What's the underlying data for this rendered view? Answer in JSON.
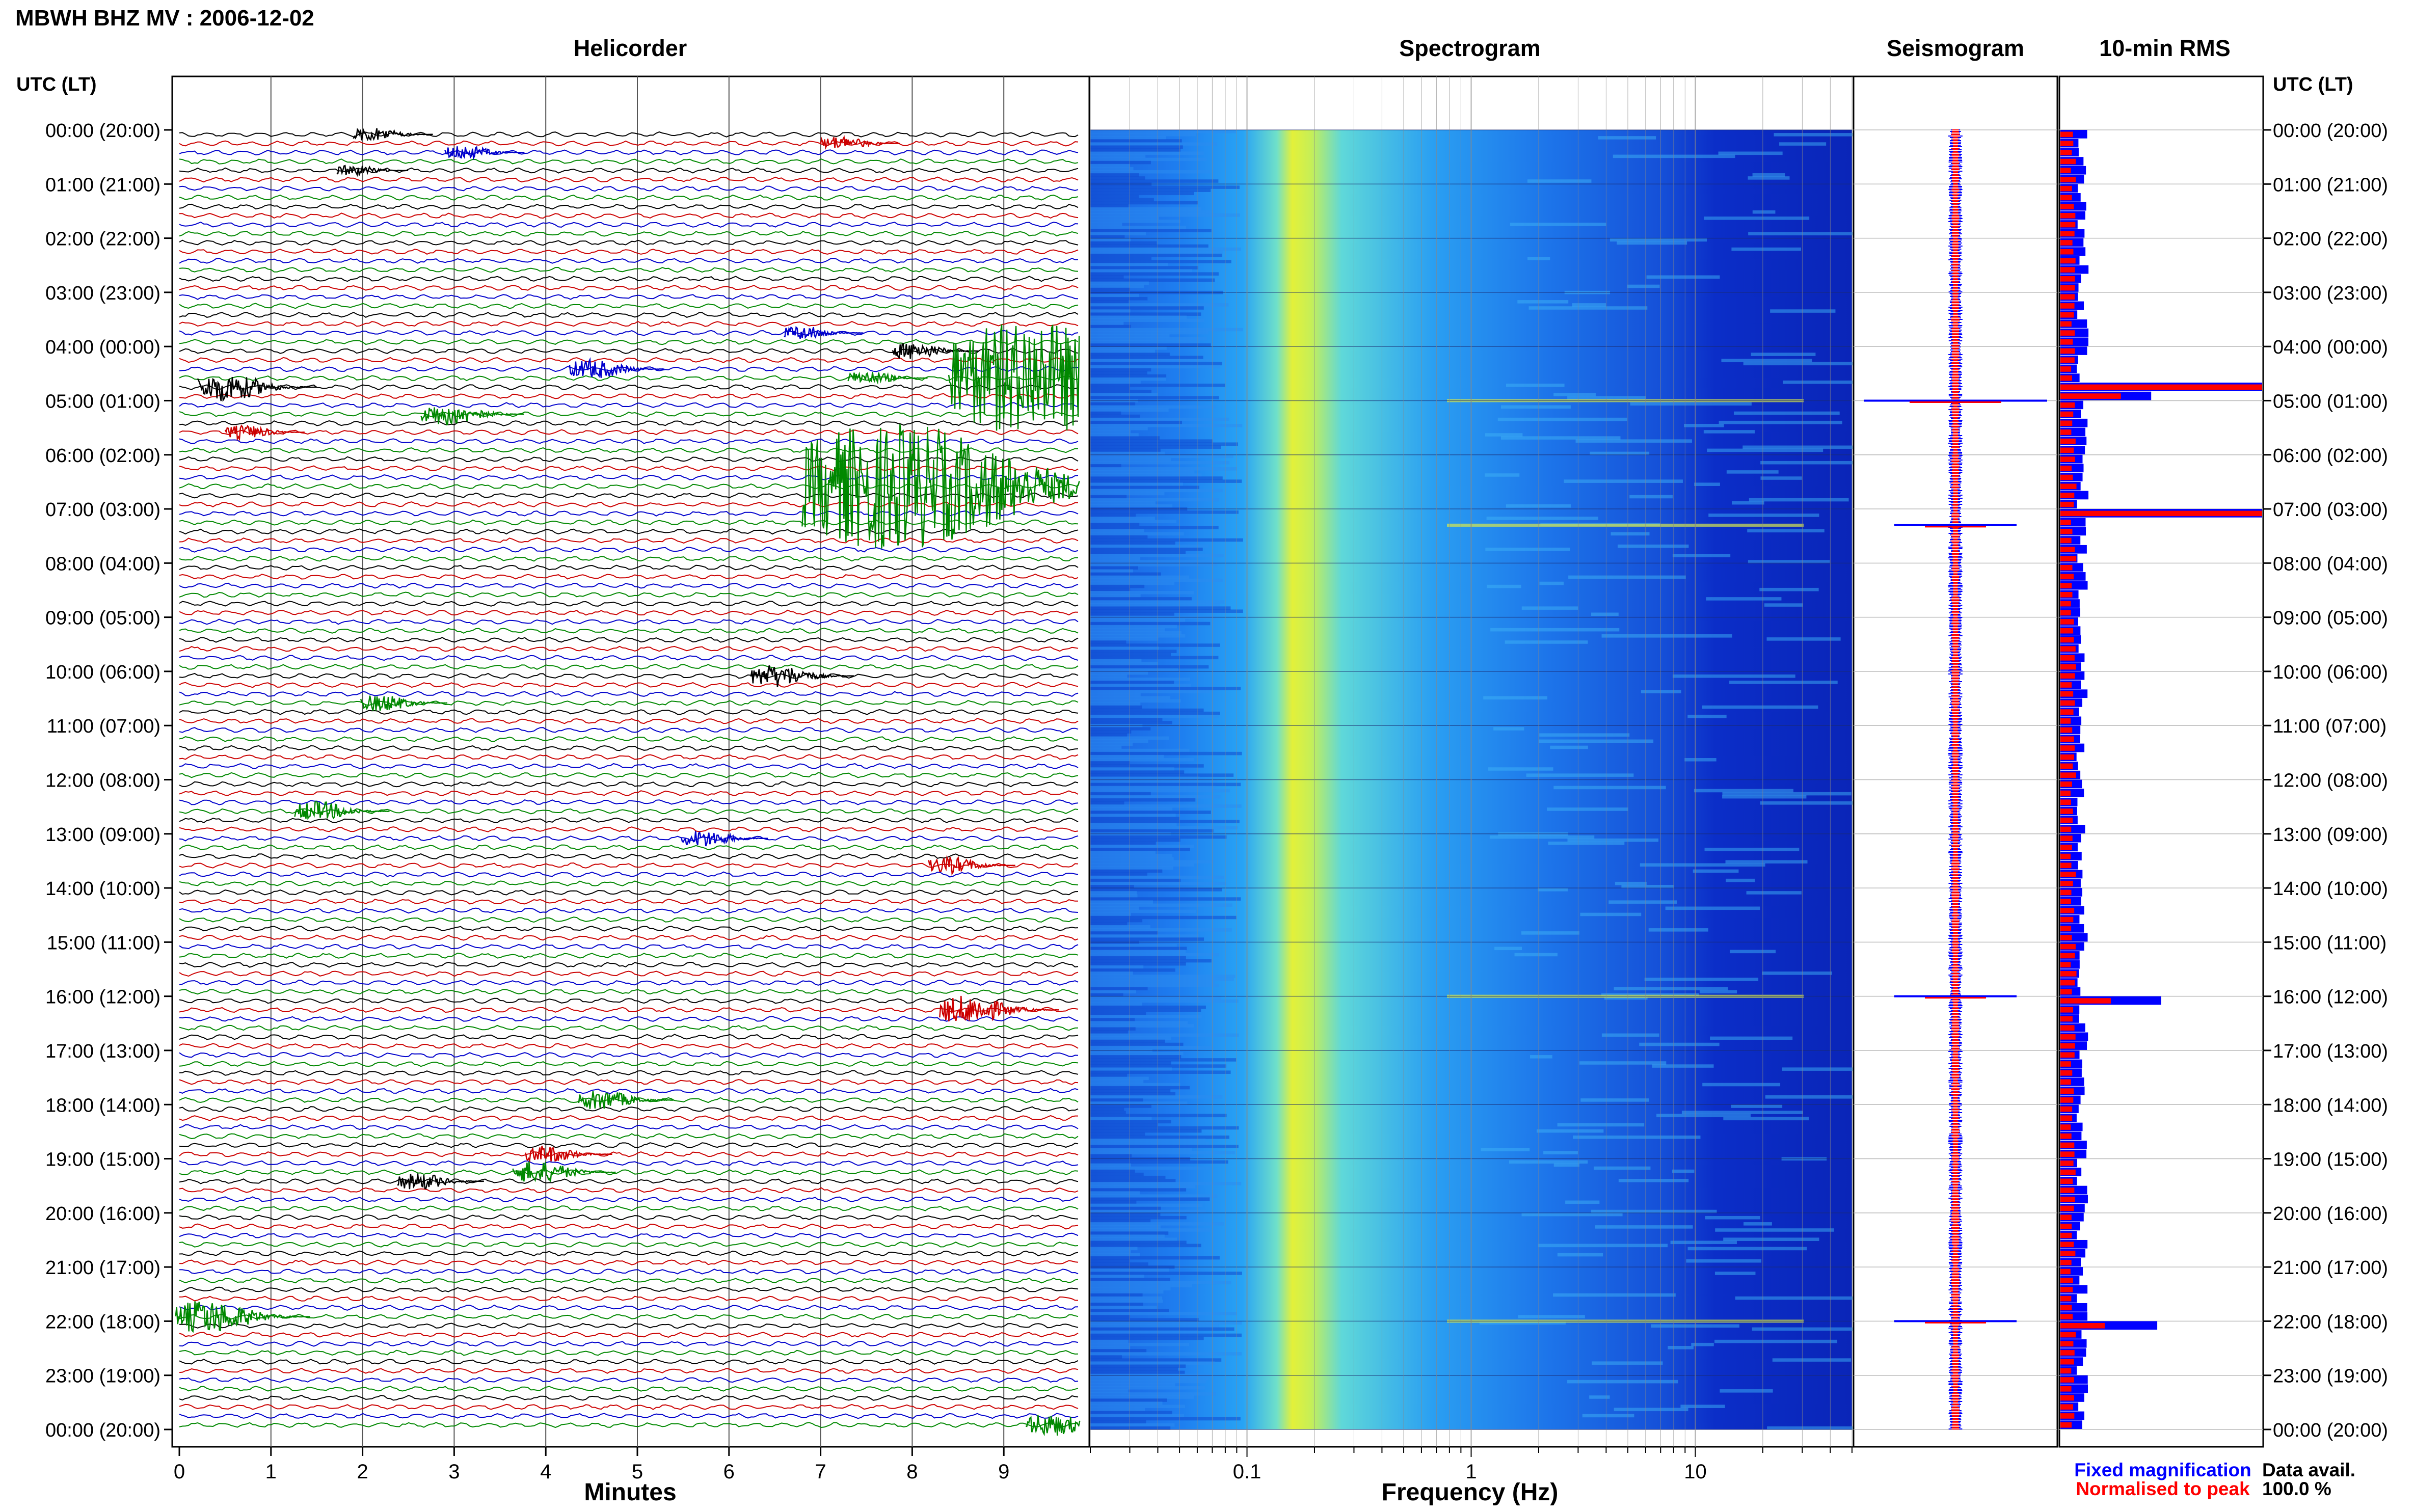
{
  "header": {
    "title": "MBWH BHZ MV : 2006-12-02"
  },
  "panels": {
    "helicorder": "Helicorder",
    "spectrogram": "Spectrogram",
    "seismogram": "Seismogram",
    "rms": "10-min RMS"
  },
  "axes": {
    "time_header": "UTC (LT)",
    "helicorder_xlabel": "Minutes",
    "spectrogram_xlabel": "Frequency (Hz)"
  },
  "legend": {
    "fixed": "Fixed magnification",
    "normalised": "Normalised to peak",
    "fixed_color": "#0000ff",
    "normalised_color": "#ff0000"
  },
  "data_avail": {
    "label": "Data avail.",
    "value": "100.0 %"
  },
  "colors": {
    "trace_cycle": [
      "#000000",
      "#cc0000",
      "#0000cc",
      "#008800"
    ]
  },
  "chart_data": [
    {
      "type": "line",
      "name": "helicorder",
      "x_minutes_ticks": [
        "0",
        "1",
        "2",
        "3",
        "4",
        "5",
        "6",
        "7",
        "8",
        "9"
      ],
      "xlim": [
        0,
        10
      ],
      "rows_per_hour": 6,
      "hours": 24,
      "hour_labels": [
        "00:00 (20:00)",
        "01:00 (21:00)",
        "02:00 (22:00)",
        "03:00 (23:00)",
        "04:00 (00:00)",
        "05:00 (01:00)",
        "06:00 (02:00)",
        "07:00 (03:00)",
        "08:00 (04:00)",
        "09:00 (05:00)",
        "10:00 (06:00)",
        "11:00 (07:00)",
        "12:00 (08:00)",
        "13:00 (09:00)",
        "14:00 (10:00)",
        "15:00 (11:00)",
        "16:00 (12:00)",
        "17:00 (13:00)",
        "18:00 (14:00)",
        "19:00 (15:00)",
        "20:00 (16:00)",
        "21:00 (17:00)",
        "22:00 (18:00)",
        "23:00 (19:00)",
        "00:00 (20:00)"
      ],
      "events": [
        {
          "row": 0,
          "minute": 2.1,
          "amp": 0.5
        },
        {
          "row": 1,
          "minute": 7.2,
          "amp": 0.5
        },
        {
          "row": 2,
          "minute": 3.1,
          "amp": 0.5
        },
        {
          "row": 4,
          "minute": 1.9,
          "amp": 0.4
        },
        {
          "row": 22,
          "minute": 6.8,
          "amp": 0.5
        },
        {
          "row": 24,
          "minute": 8.0,
          "amp": 0.6
        },
        {
          "row": 26,
          "minute": 4.5,
          "amp": 0.7
        },
        {
          "row": 27,
          "minute": 7.5,
          "amp": 0.5
        },
        {
          "row": 28,
          "minute": 0.5,
          "amp": 1.0
        },
        {
          "row": 27,
          "minute": 9.3,
          "amp": 4.0
        },
        {
          "row": 31,
          "minute": 2.9,
          "amp": 0.8
        },
        {
          "row": 33,
          "minute": 0.7,
          "amp": 0.5
        },
        {
          "row": 39,
          "minute": 7.8,
          "amp": 4.5
        },
        {
          "row": 60,
          "minute": 6.5,
          "amp": 0.8
        },
        {
          "row": 63,
          "minute": 2.2,
          "amp": 0.6
        },
        {
          "row": 75,
          "minute": 1.5,
          "amp": 0.7
        },
        {
          "row": 78,
          "minute": 5.7,
          "amp": 0.6
        },
        {
          "row": 81,
          "minute": 8.4,
          "amp": 0.6
        },
        {
          "row": 97,
          "minute": 8.6,
          "amp": 1.0
        },
        {
          "row": 107,
          "minute": 4.6,
          "amp": 0.7
        },
        {
          "row": 113,
          "minute": 4.0,
          "amp": 0.6
        },
        {
          "row": 115,
          "minute": 3.9,
          "amp": 0.8
        },
        {
          "row": 116,
          "minute": 2.6,
          "amp": 0.6
        },
        {
          "row": 131,
          "minute": 0.3,
          "amp": 1.2
        },
        {
          "row": 143,
          "minute": 9.5,
          "amp": 0.8
        }
      ]
    },
    {
      "type": "heatmap",
      "name": "spectrogram",
      "xscale": "log",
      "x_ticks": [
        "0.1",
        "1",
        "10"
      ],
      "xlim": [
        0.02,
        50
      ],
      "band_hz": [
        0.15,
        0.35
      ]
    },
    {
      "type": "line",
      "name": "seismogram",
      "spikes_hour": [
        5.0,
        7.3,
        16.0,
        22.0
      ]
    },
    {
      "type": "bar",
      "name": "10-min RMS",
      "peaks": [
        {
          "row": 28,
          "fixed": 1.0,
          "normalised": 1.0
        },
        {
          "row": 29,
          "fixed": 0.45,
          "normalised": 0.3
        },
        {
          "row": 42,
          "fixed": 1.0,
          "normalised": 1.0
        },
        {
          "row": 96,
          "fixed": 0.5,
          "normalised": 0.25
        },
        {
          "row": 132,
          "fixed": 0.48,
          "normalised": 0.22
        }
      ]
    }
  ]
}
